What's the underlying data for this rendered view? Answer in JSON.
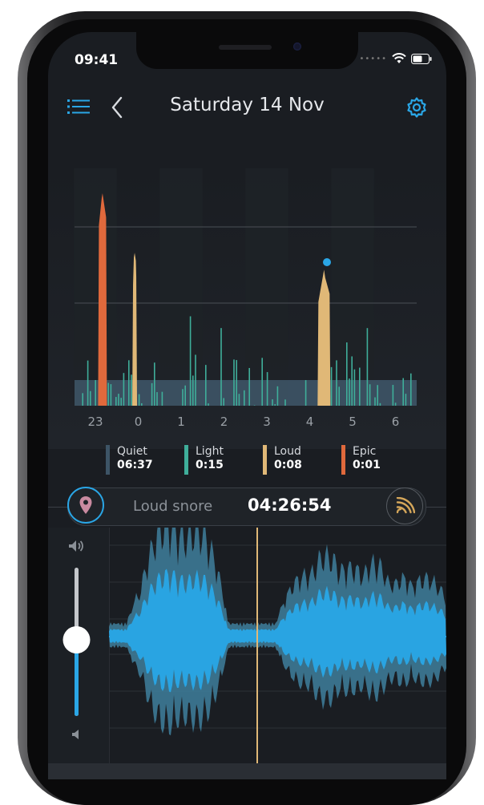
{
  "status": {
    "time": "09:41"
  },
  "header": {
    "title": "Saturday 14 Nov",
    "icons": [
      "list-icon",
      "back-chevron-icon",
      "gear-icon"
    ]
  },
  "colors": {
    "accent": "#2aa6e6",
    "quiet": "#3d5466",
    "light": "#3fae9a",
    "loud": "#e0b877",
    "epic": "#e0693c",
    "background": "#1a1d22"
  },
  "chart_data": {
    "type": "bar",
    "x_ticks": [
      "23",
      "0",
      "1",
      "2",
      "3",
      "4",
      "5",
      "6"
    ],
    "series": [
      {
        "name": "Epic",
        "peaks": [
          {
            "time": "23:10",
            "level": 2.5
          }
        ]
      },
      {
        "name": "Loud",
        "peaks": [
          {
            "time": "23:55",
            "level": 1.8
          },
          {
            "time": "04:20",
            "level": 1.6
          }
        ]
      },
      {
        "name": "Light",
        "level_max": 1.1
      }
    ],
    "ylim": [
      0,
      3
    ],
    "grid": true,
    "marker": {
      "time": "04:26",
      "series": "Loud"
    }
  },
  "legend": [
    {
      "name": "Quiet",
      "value": "06:37",
      "color": "#3d5466"
    },
    {
      "name": "Light",
      "value": "0:15",
      "color": "#3fae9a"
    },
    {
      "name": "Loud",
      "value": "0:08",
      "color": "#e0b877"
    },
    {
      "name": "Epic",
      "value": "0:01",
      "color": "#e0693c"
    }
  ],
  "player": {
    "label": "Loud snore",
    "time": "04:26:54",
    "icons": [
      "location-pin-icon",
      "sound-waves-icon"
    ]
  },
  "volume": {
    "level": 0.49,
    "icons": [
      "volume-high-icon",
      "volume-low-icon"
    ]
  }
}
